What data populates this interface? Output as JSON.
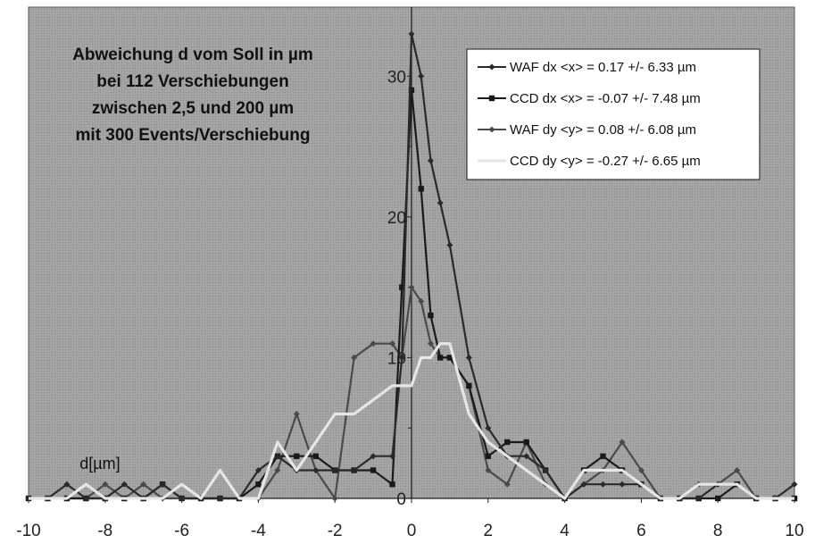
{
  "chart_data": {
    "type": "line",
    "title_lines": [
      "Abweichung d vom Soll in µm",
      "bei 112 Verschiebungen",
      "zwischen 2,5 und 200 µm",
      "mit 300 Events/Verschiebung"
    ],
    "xlabel": "d[µm]",
    "ylabel": "",
    "xlim": [
      -10,
      10
    ],
    "ylim": [
      0,
      33
    ],
    "xticks": [
      "-10",
      "-8",
      "-6",
      "-4",
      "-2",
      "0",
      "2",
      "4",
      "6",
      "8",
      "10"
    ],
    "yticks": [
      "0",
      "10",
      "20",
      "30"
    ],
    "grid": false,
    "legend_position": "top-right",
    "colors": {
      "plot_bg": "#9a9a9a",
      "waf_dx": "#2a2a2a",
      "ccd_dx": "#1a1a1a",
      "waf_dy": "#4a4a4a",
      "ccd_dy": "#e6e6e6"
    },
    "series": [
      {
        "name": "WAF dx <x> = 0.17 +/- 6.33 µm",
        "marker": "diamond",
        "points": [
          [
            -10,
            0
          ],
          [
            -9.5,
            0
          ],
          [
            -9,
            1
          ],
          [
            -8.5,
            0
          ],
          [
            -8,
            0
          ],
          [
            -7.5,
            1
          ],
          [
            -7,
            0
          ],
          [
            -6.5,
            1
          ],
          [
            -6,
            0
          ],
          [
            -5.5,
            0
          ],
          [
            -5,
            0
          ],
          [
            -4.5,
            0
          ],
          [
            -4,
            2
          ],
          [
            -3.5,
            3
          ],
          [
            -3,
            2
          ],
          [
            -2.5,
            2
          ],
          [
            -2,
            2
          ],
          [
            -1.5,
            2
          ],
          [
            -1,
            3
          ],
          [
            -0.5,
            3
          ],
          [
            -0.25,
            10
          ],
          [
            0,
            33
          ],
          [
            0.25,
            30
          ],
          [
            0.5,
            24
          ],
          [
            0.75,
            21
          ],
          [
            1,
            18
          ],
          [
            1.5,
            10
          ],
          [
            2,
            5
          ],
          [
            2.5,
            3
          ],
          [
            3,
            3
          ],
          [
            3.5,
            2
          ],
          [
            4,
            0
          ],
          [
            4.5,
            1
          ],
          [
            5,
            1
          ],
          [
            5.5,
            1
          ],
          [
            6,
            1
          ],
          [
            6.5,
            0
          ],
          [
            7,
            0
          ],
          [
            7.5,
            0
          ],
          [
            8,
            1
          ],
          [
            8.5,
            1
          ],
          [
            9,
            0
          ],
          [
            9.5,
            0
          ],
          [
            10,
            1
          ]
        ]
      },
      {
        "name": "CCD dx <x> = -0.07 +/- 7.48 µm",
        "marker": "square",
        "points": [
          [
            -10,
            0
          ],
          [
            -9.5,
            0
          ],
          [
            -9,
            0
          ],
          [
            -8.5,
            0
          ],
          [
            -8,
            0
          ],
          [
            -7.5,
            0
          ],
          [
            -7,
            0
          ],
          [
            -6.5,
            1
          ],
          [
            -6,
            0
          ],
          [
            -5.5,
            0
          ],
          [
            -5,
            0
          ],
          [
            -4.5,
            0
          ],
          [
            -4,
            1
          ],
          [
            -3.5,
            3
          ],
          [
            -3,
            3
          ],
          [
            -2.5,
            3
          ],
          [
            -2,
            2
          ],
          [
            -1.5,
            2
          ],
          [
            -1,
            2
          ],
          [
            -0.5,
            1
          ],
          [
            -0.25,
            15
          ],
          [
            0,
            29
          ],
          [
            0.25,
            22
          ],
          [
            0.5,
            13
          ],
          [
            0.75,
            10
          ],
          [
            1,
            10
          ],
          [
            1.5,
            8
          ],
          [
            2,
            3
          ],
          [
            2.5,
            4
          ],
          [
            3,
            4
          ],
          [
            3.5,
            2
          ],
          [
            4,
            0
          ],
          [
            4.5,
            2
          ],
          [
            5,
            3
          ],
          [
            5.5,
            2
          ],
          [
            6,
            1
          ],
          [
            6.5,
            0
          ],
          [
            7,
            0
          ],
          [
            7.5,
            0
          ],
          [
            8,
            0
          ],
          [
            8.5,
            1
          ],
          [
            9,
            0
          ],
          [
            9.5,
            0
          ],
          [
            10,
            0
          ]
        ]
      },
      {
        "name": "WAF dy <y> = 0.08 +/- 6.08 µm",
        "marker": "diamond",
        "points": [
          [
            -10,
            0
          ],
          [
            -9.5,
            0
          ],
          [
            -9,
            0
          ],
          [
            -8.5,
            0
          ],
          [
            -8,
            1
          ],
          [
            -7.5,
            0
          ],
          [
            -7,
            1
          ],
          [
            -6.5,
            0
          ],
          [
            -6,
            0
          ],
          [
            -5.5,
            0
          ],
          [
            -5,
            0
          ],
          [
            -4.5,
            0
          ],
          [
            -4,
            0
          ],
          [
            -3.5,
            2
          ],
          [
            -3,
            6
          ],
          [
            -2.5,
            2
          ],
          [
            -2,
            0
          ],
          [
            -1.5,
            10
          ],
          [
            -1,
            11
          ],
          [
            -0.5,
            11
          ],
          [
            -0.25,
            10
          ],
          [
            0,
            15
          ],
          [
            0.25,
            14
          ],
          [
            0.5,
            11
          ],
          [
            0.75,
            10
          ],
          [
            1,
            10
          ],
          [
            1.5,
            8
          ],
          [
            2,
            2
          ],
          [
            2.5,
            1
          ],
          [
            3,
            4
          ],
          [
            3.5,
            1
          ],
          [
            4,
            0
          ],
          [
            4.5,
            1
          ],
          [
            5,
            2
          ],
          [
            5.5,
            4
          ],
          [
            6,
            2
          ],
          [
            6.5,
            0
          ],
          [
            7,
            0
          ],
          [
            7.5,
            1
          ],
          [
            8,
            1
          ],
          [
            8.5,
            2
          ],
          [
            9,
            0
          ],
          [
            9.5,
            0
          ],
          [
            10,
            0
          ]
        ]
      },
      {
        "name": "CCD dy <y> = -0.27 +/- 6.65 µm",
        "marker": "none",
        "points": [
          [
            -10,
            0
          ],
          [
            -9.5,
            0
          ],
          [
            -9,
            0
          ],
          [
            -8.5,
            1
          ],
          [
            -8,
            0
          ],
          [
            -7.5,
            0
          ],
          [
            -7,
            0
          ],
          [
            -6.5,
            0
          ],
          [
            -6,
            1
          ],
          [
            -5.5,
            0
          ],
          [
            -5,
            2
          ],
          [
            -4.5,
            0
          ],
          [
            -4,
            0
          ],
          [
            -3.5,
            4
          ],
          [
            -3,
            2
          ],
          [
            -2.5,
            4
          ],
          [
            -2,
            6
          ],
          [
            -1.5,
            6
          ],
          [
            -1,
            7
          ],
          [
            -0.5,
            8
          ],
          [
            -0.25,
            8
          ],
          [
            0,
            8
          ],
          [
            0.25,
            10
          ],
          [
            0.5,
            10
          ],
          [
            0.75,
            11
          ],
          [
            1,
            11
          ],
          [
            1.5,
            6
          ],
          [
            2,
            4
          ],
          [
            2.5,
            3
          ],
          [
            3,
            2
          ],
          [
            3.5,
            1
          ],
          [
            4,
            0
          ],
          [
            4.5,
            2
          ],
          [
            5,
            2
          ],
          [
            5.5,
            2
          ],
          [
            6,
            1
          ],
          [
            6.5,
            0
          ],
          [
            7,
            0
          ],
          [
            7.5,
            1
          ],
          [
            8,
            1
          ],
          [
            8.5,
            1
          ],
          [
            9,
            0
          ],
          [
            9.5,
            0
          ],
          [
            10,
            0
          ]
        ]
      }
    ]
  }
}
